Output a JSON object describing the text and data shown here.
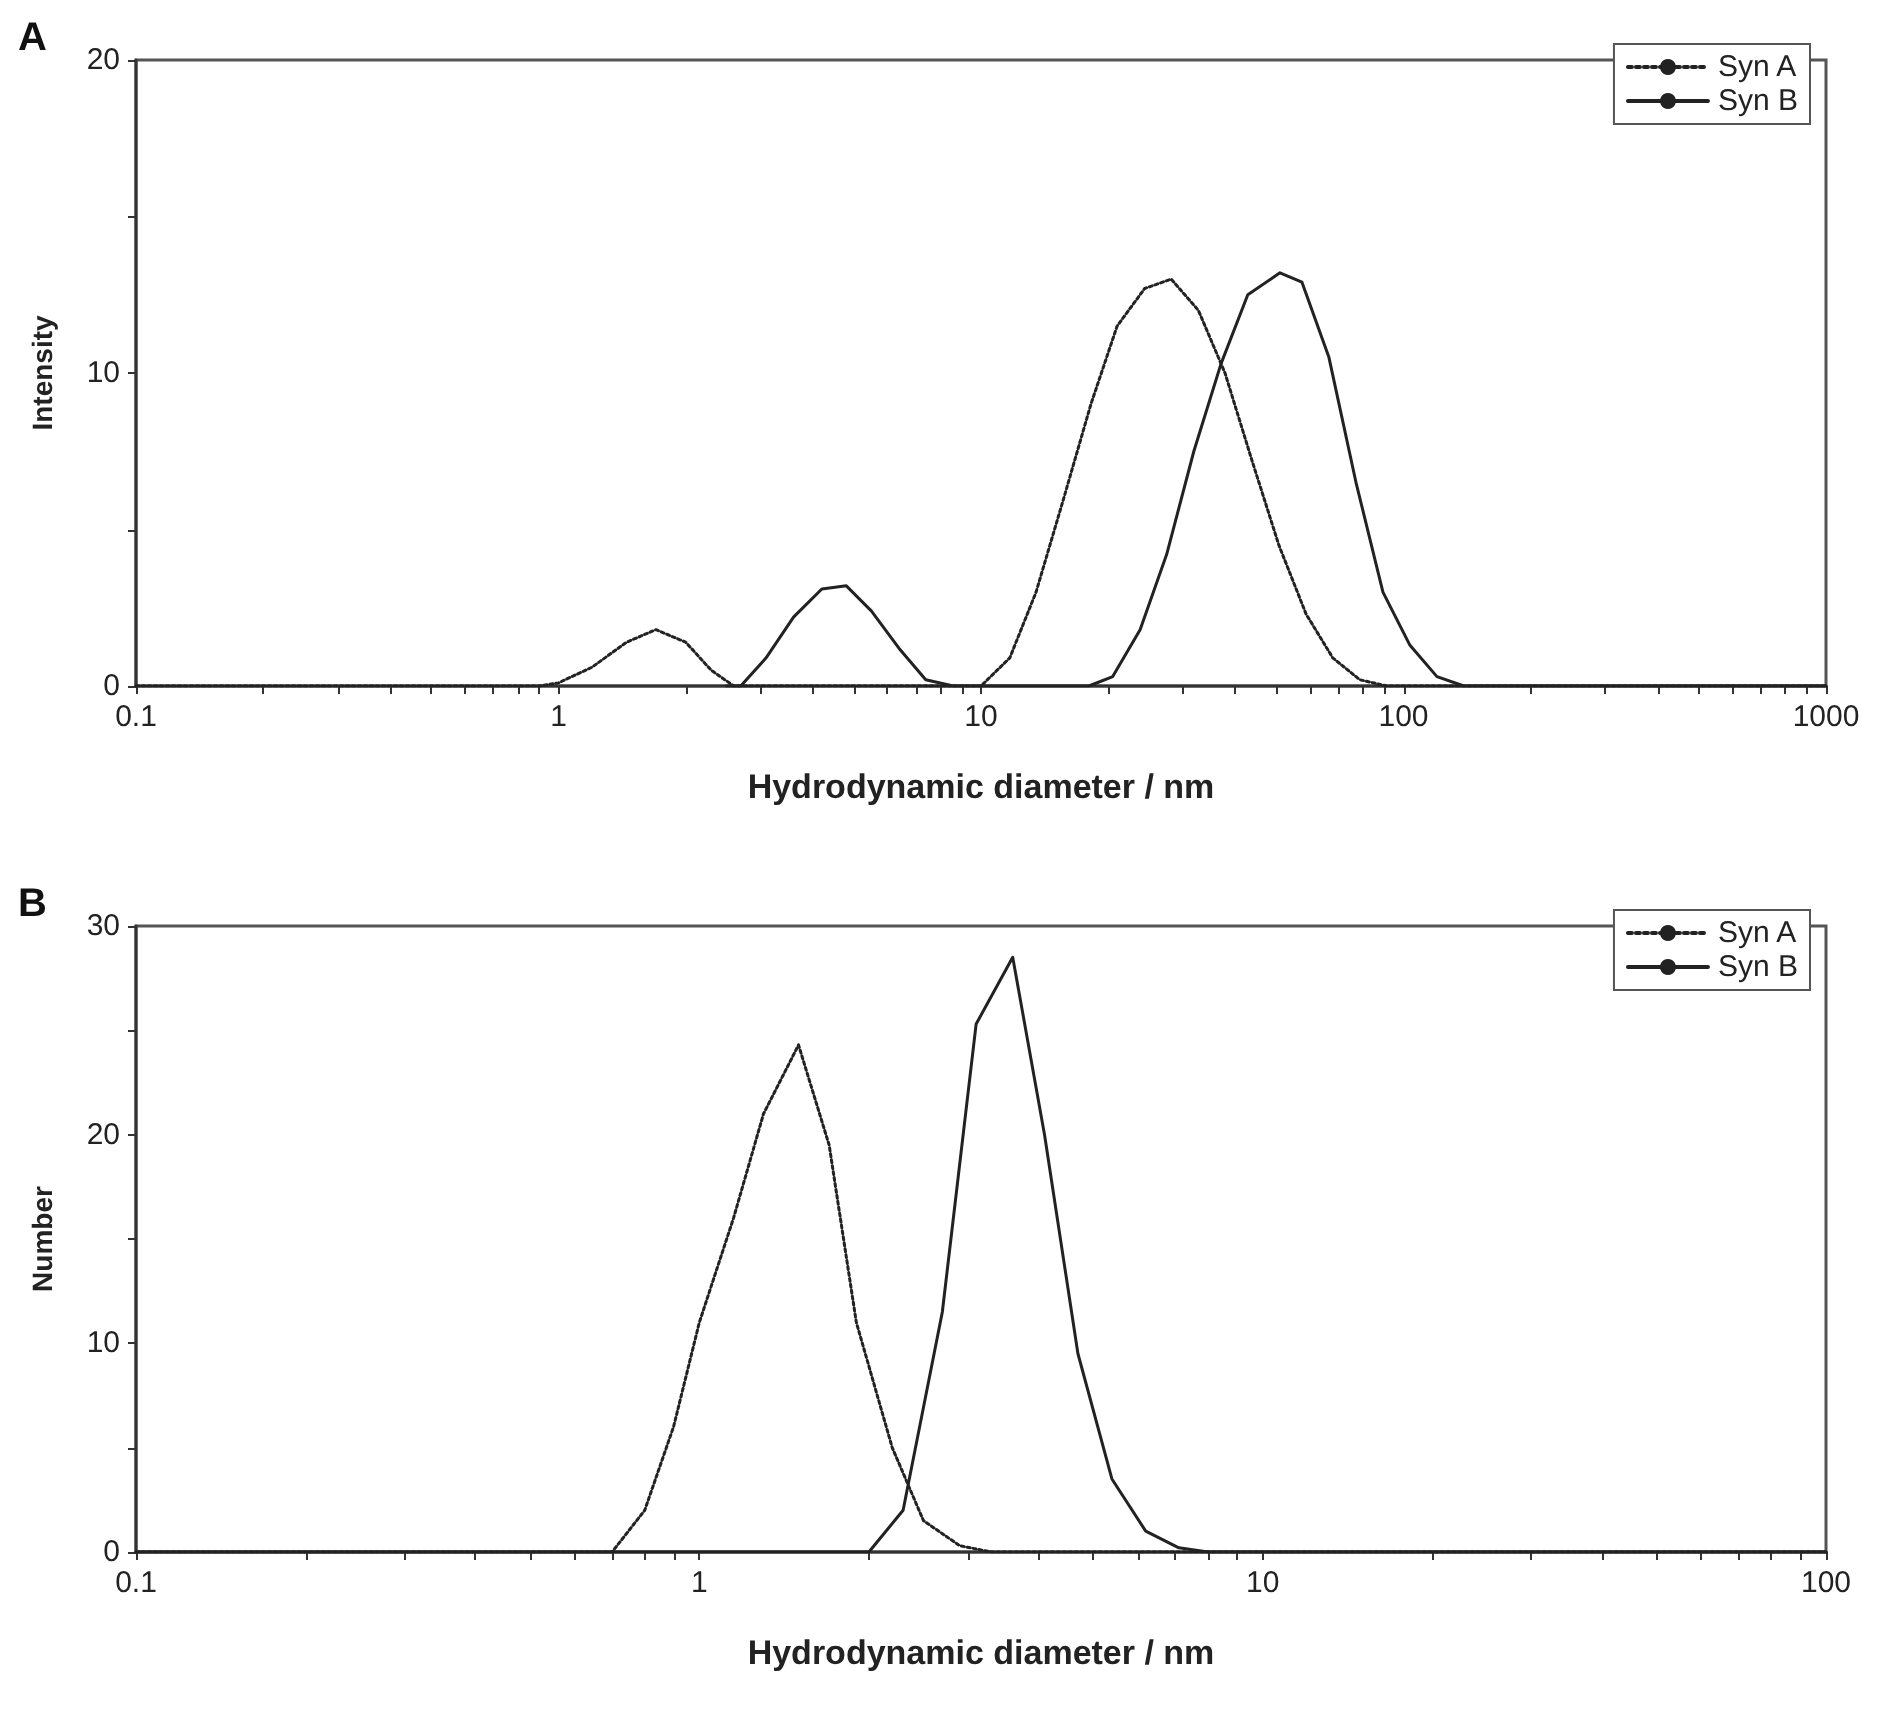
{
  "chart_data": [
    {
      "type": "line",
      "title": "A",
      "xlabel": "Hydrodynamic diameter / nm",
      "ylabel": "Intensity",
      "log": "x",
      "grid": false,
      "legend": "top right",
      "marker": "none",
      "xlim": [
        0.1,
        1000
      ],
      "xticks": [
        {
          "value": 0.1,
          "label": "0.1"
        },
        {
          "value": 0.2,
          "label": null
        },
        {
          "value": 0.3,
          "label": null
        },
        {
          "value": 0.4,
          "label": null
        },
        {
          "value": 0.5,
          "label": null
        },
        {
          "value": 0.6,
          "label": null
        },
        {
          "value": 0.7,
          "label": null
        },
        {
          "value": 0.8,
          "label": null
        },
        {
          "value": 0.9,
          "label": null
        },
        1,
        {
          "value": 2,
          "label": null
        },
        {
          "value": 3,
          "label": null
        },
        {
          "value": 4,
          "label": null
        },
        {
          "value": 5,
          "label": null
        },
        {
          "value": 6,
          "label": null
        },
        {
          "value": 7,
          "label": null
        },
        {
          "value": 8,
          "label": null
        },
        {
          "value": 9,
          "label": null
        },
        10,
        {
          "value": 20,
          "label": null
        },
        {
          "value": 30,
          "label": null
        },
        {
          "value": 40,
          "label": null
        },
        {
          "value": 50,
          "label": null
        },
        {
          "value": 60,
          "label": null
        },
        {
          "value": 70,
          "label": null
        },
        {
          "value": 80,
          "label": null
        },
        {
          "value": 90,
          "label": null
        },
        100,
        {
          "value": 200,
          "label": null
        },
        {
          "value": 300,
          "label": null
        },
        {
          "value": 400,
          "label": null
        },
        {
          "value": 500,
          "label": null
        },
        {
          "value": 600,
          "label": null
        },
        {
          "value": 700,
          "label": null
        },
        {
          "value": 800,
          "label": null
        },
        {
          "value": 900,
          "label": null
        },
        1000
      ],
      "ylim": [
        0,
        20
      ],
      "yticks": [
        0,
        {
          "value": 5,
          "label": null
        },
        10,
        {
          "value": 15,
          "label": null
        },
        20
      ],
      "series": [
        {
          "name": "Syn A",
          "color": "#222222",
          "line_style": "dotted",
          "x": [
            0.1,
            0.9,
            1.0,
            1.2,
            1.45,
            1.7,
            2.0,
            2.3,
            2.6,
            10,
            11.7,
            13.5,
            15.7,
            18.2,
            21,
            24.4,
            28.2,
            32.7,
            37.8,
            43.8,
            50.7,
            58.8,
            68,
            78.8,
            91.3,
            1000
          ],
          "values": [
            0,
            0,
            0.1,
            0.6,
            1.4,
            1.8,
            1.4,
            0.5,
            0,
            0,
            0.9,
            3.0,
            6.0,
            9.0,
            11.5,
            12.7,
            13.0,
            12.0,
            10.0,
            7.2,
            4.5,
            2.3,
            0.9,
            0.2,
            0,
            0
          ]
        },
        {
          "name": "Syn B",
          "color": "#222222",
          "line_style": "solid",
          "x": [
            2.5,
            2.7,
            3.1,
            3.6,
            4.2,
            4.8,
            5.5,
            6.4,
            7.4,
            8.6,
            18,
            20.5,
            23.8,
            27.5,
            31.9,
            37,
            42.8,
            51,
            57.5,
            66.6,
            77.2,
            89.4,
            103.6,
            120,
            139,
            1000
          ],
          "values": [
            0,
            0,
            0.9,
            2.2,
            3.1,
            3.2,
            2.4,
            1.2,
            0.2,
            0,
            0,
            0.3,
            1.8,
            4.2,
            7.5,
            10.3,
            12.5,
            13.2,
            12.9,
            10.5,
            6.5,
            3.0,
            1.3,
            0.3,
            0,
            0
          ]
        }
      ]
    },
    {
      "type": "line",
      "title": "B",
      "xlabel": "Hydrodynamic diameter / nm",
      "ylabel": "Number",
      "log": "x",
      "grid": false,
      "legend": "top right",
      "marker": "none",
      "xlim": [
        0.1,
        100
      ],
      "xticks": [
        {
          "value": 0.1,
          "label": "0.1"
        },
        {
          "value": 0.2,
          "label": null
        },
        {
          "value": 0.3,
          "label": null
        },
        {
          "value": 0.4,
          "label": null
        },
        {
          "value": 0.5,
          "label": null
        },
        {
          "value": 0.6,
          "label": null
        },
        {
          "value": 0.7,
          "label": null
        },
        {
          "value": 0.8,
          "label": null
        },
        {
          "value": 0.9,
          "label": null
        },
        1,
        {
          "value": 2,
          "label": null
        },
        {
          "value": 3,
          "label": null
        },
        {
          "value": 4,
          "label": null
        },
        {
          "value": 5,
          "label": null
        },
        {
          "value": 6,
          "label": null
        },
        {
          "value": 7,
          "label": null
        },
        {
          "value": 8,
          "label": null
        },
        {
          "value": 9,
          "label": null
        },
        10,
        {
          "value": 20,
          "label": null
        },
        {
          "value": 30,
          "label": null
        },
        {
          "value": 40,
          "label": null
        },
        {
          "value": 50,
          "label": null
        },
        {
          "value": 60,
          "label": null
        },
        {
          "value": 70,
          "label": null
        },
        {
          "value": 80,
          "label": null
        },
        {
          "value": 90,
          "label": null
        },
        100
      ],
      "ylim": [
        0,
        30
      ],
      "yticks": [
        0,
        {
          "value": 5,
          "label": null
        },
        10,
        {
          "value": 15,
          "label": null
        },
        20,
        {
          "value": 25,
          "label": null
        },
        30
      ],
      "series": [
        {
          "name": "Syn A",
          "color": "#222222",
          "line_style": "dotted",
          "x": [
            0.1,
            0.7,
            0.8,
            0.9,
            1.0,
            1.15,
            1.3,
            1.5,
            1.7,
            1.9,
            2.2,
            2.5,
            2.9,
            3.3,
            100
          ],
          "values": [
            0,
            0,
            2,
            6,
            11,
            16,
            21,
            24.3,
            19.5,
            11,
            5,
            1.5,
            0.3,
            0,
            0
          ]
        },
        {
          "name": "Syn B",
          "color": "#222222",
          "line_style": "solid",
          "x": [
            0.1,
            2.0,
            2.3,
            2.7,
            3.1,
            3.6,
            4.1,
            4.7,
            5.4,
            6.2,
            7.1,
            8,
            100
          ],
          "values": [
            0,
            0,
            2,
            11.5,
            25.3,
            28.5,
            20,
            9.5,
            3.5,
            1,
            0.2,
            0,
            0
          ]
        }
      ]
    }
  ]
}
